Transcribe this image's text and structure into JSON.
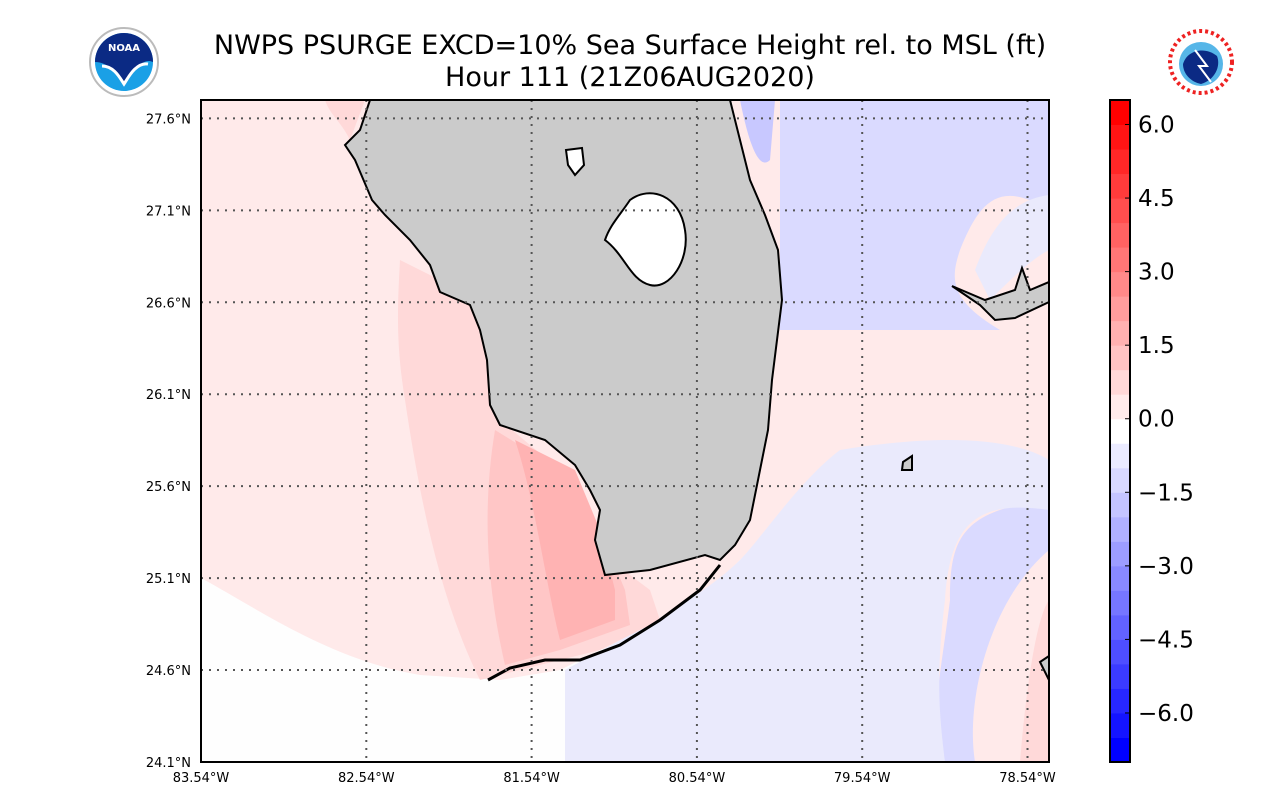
{
  "header": {
    "title_line1": "NWPS PSURGE EXCD=10% Sea Surface Height rel. to MSL (ft)",
    "title_line2": "Hour 111 (21Z06AUG2020)",
    "left_logo": "NOAA",
    "right_logo": "NATIONAL WEATHER SERVICE"
  },
  "chart_data": {
    "type": "heatmap",
    "title": "NWPS PSURGE EXCD=10% Sea Surface Height rel. to MSL (ft)",
    "subtitle": "Hour 111 (21Z06AUG2020)",
    "xlim": [
      -83.54,
      -78.41
    ],
    "ylim": [
      24.1,
      27.7
    ],
    "x_ticks": [
      -83.54,
      -82.54,
      -81.54,
      -80.54,
      -79.54,
      -78.54
    ],
    "x_tick_labels": [
      "83.54°W",
      "82.54°W",
      "81.54°W",
      "80.54°W",
      "79.54°W",
      "78.54°W"
    ],
    "y_ticks": [
      24.1,
      24.6,
      25.1,
      25.6,
      26.1,
      26.6,
      27.1,
      27.6
    ],
    "y_tick_labels": [
      "24.1°N",
      "24.6°N",
      "25.1°N",
      "25.6°N",
      "26.1°N",
      "26.6°N",
      "27.1°N",
      "27.6°N"
    ],
    "grid": true,
    "colorbar": {
      "range": [
        -7.0,
        6.5
      ],
      "step": 0.5,
      "ticks": [
        6.0,
        4.5,
        3.0,
        1.5,
        0.0,
        -1.5,
        -3.0,
        -4.5,
        -6.0
      ],
      "tick_labels": [
        "6.0",
        "4.5",
        "3.0",
        "1.5",
        "0.0",
        "−1.5",
        "−3.0",
        "−4.5",
        "−6.0"
      ],
      "low_color": "#0000ff",
      "mid_color": "#ffffff",
      "high_color": "#ff0000"
    },
    "regions": [
      {
        "name": "gulf-background",
        "value": 0.25
      },
      {
        "name": "southwest-coast-surge",
        "value": 0.75
      },
      {
        "name": "ten-thousand-islands-surge",
        "value": 1.75
      },
      {
        "name": "atlantic-east-coast",
        "value": -1.25
      },
      {
        "name": "straits-of-florida",
        "value": -0.75
      },
      {
        "name": "open-gulf-south",
        "value": -0.25
      }
    ],
    "land_color": "#cbcbcb"
  }
}
